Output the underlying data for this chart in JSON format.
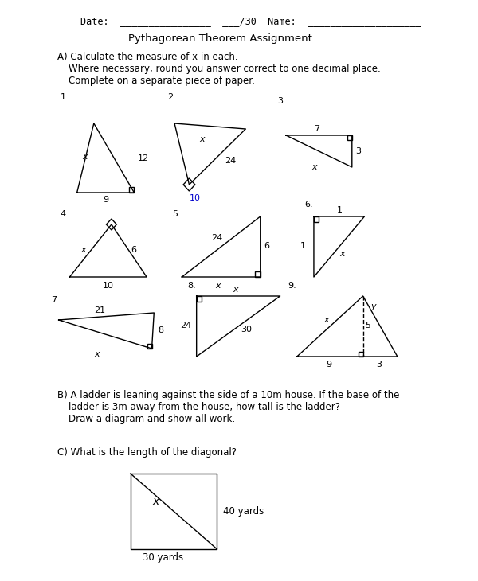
{
  "title": "Pythagorean Theorem Assignment",
  "header": "Date:  ________________  ___/30  Name:  ____________________",
  "section_a": "A) Calculate the measure of x in each.",
  "line2": "Where necessary, round you answer correct to one decimal place.",
  "line3": "Complete on a separate piece of paper.",
  "section_b_title": "B) A ladder is leaning against the side of a 10m house. If the base of the",
  "section_b_line2": "ladder is 3m away from the house, how tall is the ladder?",
  "section_b_line3": "Draw a diagram and show all work.",
  "section_c_title": "C) What is the length of the diagonal?",
  "section_c_label_x": "x",
  "section_c_label_40": "40 yards",
  "section_c_label_30": "30 yards",
  "bg_color": "#ffffff",
  "text_color": "#000000",
  "blue_color": "#0000cc"
}
